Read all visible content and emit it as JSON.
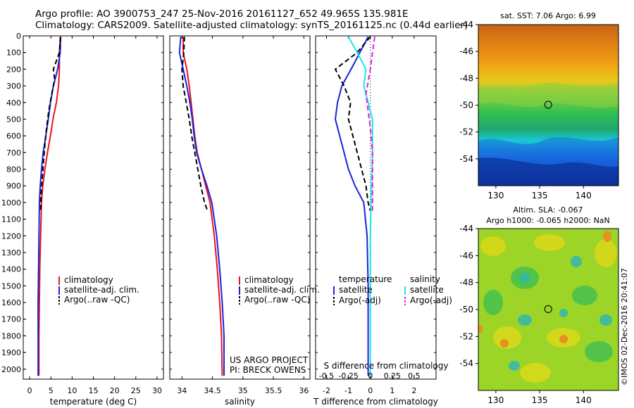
{
  "header": {
    "line1": "Argo profile: AO 3900753_247 25-Nov-2016 20161127_652 49.965S 135.981E",
    "line2": "Climatology: CARS2009. Satellite-adjusted climatology: synTS_20161125.nc (0.44d earlier)"
  },
  "credit": {
    "project": "US ARGO PROJECT",
    "pi": "PI: BRECK OWENS"
  },
  "timestamp": "©IMOS 02-Dec-2016 20:41:07",
  "colors": {
    "climatology": "#e8141e",
    "satellite": "#1a23d9",
    "argo": "#000000",
    "salinity_sat": "#18e8e8",
    "salinity_argo": "#e020e0"
  },
  "chart_data": [
    {
      "type": "line",
      "id": "temperature",
      "xlabel": "temperature (deg C)",
      "xlim": [
        -1.5,
        31.5
      ],
      "ylim": [
        2060,
        0
      ],
      "xticks": [
        0,
        5,
        10,
        15,
        20,
        25,
        30
      ],
      "yticks": [
        0,
        100,
        200,
        300,
        400,
        500,
        600,
        700,
        800,
        900,
        1000,
        1100,
        1200,
        1300,
        1400,
        1500,
        1600,
        1700,
        1800,
        1900,
        2000
      ],
      "legend": [
        "climatology",
        "satellite-adj. clim.",
        "Argo(..raw -QC)"
      ],
      "series": [
        {
          "name": "climatology",
          "x": [
            7.2,
            7.0,
            7.0,
            6.8,
            6.3,
            5.5,
            4.9,
            4.2,
            3.6,
            3.1,
            2.8,
            2.6,
            2.4,
            2.3,
            2.2,
            2.2,
            2.2
          ],
          "y": [
            5,
            100,
            200,
            300,
            400,
            500,
            600,
            700,
            800,
            900,
            1000,
            1200,
            1400,
            1600,
            1800,
            2000,
            2040
          ]
        },
        {
          "name": "satellite-adj. clim.",
          "x": [
            7.3,
            7.2,
            6.6,
            5.6,
            4.9,
            4.4,
            3.8,
            3.2,
            2.8,
            2.5,
            2.3,
            2.2,
            2.1,
            2.0,
            2.0,
            2.0
          ],
          "y": [
            5,
            100,
            200,
            300,
            400,
            500,
            600,
            700,
            800,
            900,
            1000,
            1200,
            1400,
            1600,
            1800,
            2040
          ]
        },
        {
          "name": "Argo(..raw -QC)",
          "x": [
            7.3,
            7.0,
            5.6,
            5.9,
            5.2,
            4.5,
            4.0,
            3.6,
            3.3,
            3.0,
            2.7,
            2.6
          ],
          "y": [
            5,
            100,
            200,
            260,
            350,
            450,
            550,
            650,
            750,
            850,
            950,
            1050
          ]
        }
      ]
    },
    {
      "type": "line",
      "id": "salinity",
      "xlabel": "salinity",
      "xlim": [
        33.8,
        36.1
      ],
      "ylim": [
        2060,
        0
      ],
      "xticks": [
        "34",
        "34.5",
        "35",
        "35.5",
        "36"
      ],
      "legend": [
        "climatology",
        "satellite-adj. clim.",
        "Argo(..raw -QC)"
      ],
      "series": [
        {
          "name": "climatology",
          "x": [
            34.02,
            34.02,
            34.08,
            34.12,
            34.15,
            34.18,
            34.21,
            34.25,
            34.32,
            34.39,
            34.46,
            34.53,
            34.58,
            34.62,
            34.65,
            34.66
          ],
          "y": [
            5,
            100,
            200,
            300,
            400,
            500,
            600,
            700,
            800,
            900,
            1000,
            1200,
            1400,
            1600,
            1800,
            2040
          ]
        },
        {
          "name": "satellite-adj. clim.",
          "x": [
            33.98,
            33.96,
            34.02,
            34.08,
            34.13,
            34.17,
            34.2,
            34.24,
            34.32,
            34.41,
            34.49,
            34.57,
            34.62,
            34.66,
            34.69,
            34.69
          ],
          "y": [
            5,
            100,
            200,
            300,
            400,
            500,
            600,
            700,
            800,
            900,
            1000,
            1200,
            1400,
            1600,
            1800,
            2040
          ]
        },
        {
          "name": "Argo(..raw -QC)",
          "x": [
            34.04,
            34.03,
            34.0,
            34.02,
            34.07,
            34.12,
            34.16,
            34.21,
            34.26,
            34.31,
            34.37,
            34.42
          ],
          "y": [
            5,
            100,
            200,
            300,
            400,
            500,
            600,
            700,
            800,
            900,
            1000,
            1050
          ]
        }
      ]
    },
    {
      "type": "line",
      "id": "difference",
      "xlabel": "T difference from climatology",
      "xlabel2": "S difference from climatology",
      "xlim": [
        -2.5,
        3.0
      ],
      "ylim": [
        2060,
        0
      ],
      "xticks": [
        "-2",
        "-1",
        "0",
        "1",
        "2"
      ],
      "xticks_s": [
        "-0.5",
        "-0.25",
        "0",
        "0.25",
        "0.5"
      ],
      "legend_temperature": [
        "temperature",
        "satellite",
        "Argo(-adj)"
      ],
      "legend_salinity": [
        "salinity",
        "satellite",
        "Argo(-adj)"
      ],
      "series": [
        {
          "name": "satellite",
          "x": [
            -0.1,
            -0.4,
            -0.8,
            -1.3,
            -1.5,
            -1.6,
            -1.4,
            -1.2,
            -1.0,
            -0.7,
            -0.3,
            -0.15,
            -0.1,
            -0.1,
            -0.1
          ],
          "y": [
            5,
            80,
            180,
            300,
            400,
            500,
            600,
            700,
            800,
            900,
            1000,
            1200,
            1500,
            1800,
            2040
          ]
        },
        {
          "name": "Argo(-adj)",
          "x": [
            0,
            -0.6,
            -1.6,
            -1.2,
            -0.9,
            -1.0,
            -0.8,
            -0.6,
            -0.4,
            -0.2,
            -0.1,
            0
          ],
          "y": [
            5,
            100,
            200,
            300,
            400,
            500,
            600,
            700,
            800,
            900,
            1000,
            1050
          ]
        },
        {
          "name": "salinity satellite",
          "x": [
            -1.0,
            -0.6,
            -0.2,
            -0.3,
            -0.1,
            0.1,
            0.1,
            0.05,
            0.0,
            0.0,
            0.0
          ],
          "y": [
            5,
            100,
            200,
            300,
            400,
            500,
            700,
            900,
            1200,
            1600,
            2040
          ]
        },
        {
          "name": "salinity Argo(-adj)",
          "x": [
            0.2,
            0.1,
            0.0,
            -0.2,
            -0.1,
            0.0,
            0.1,
            0.1,
            0.1
          ],
          "y": [
            5,
            100,
            200,
            350,
            450,
            550,
            700,
            900,
            1050
          ]
        }
      ]
    },
    {
      "type": "heatmap",
      "id": "sst_map",
      "title": "sat. SST: 7.06 Argo: 6.99",
      "xlim": [
        128,
        144
      ],
      "ylim": [
        -56,
        -44
      ],
      "xticks": [
        130,
        135,
        140
      ],
      "yticks": [
        -54,
        -52,
        -50,
        -48,
        -46,
        -44
      ],
      "marker": {
        "lon": 135.98,
        "lat": -49.97
      }
    },
    {
      "type": "heatmap",
      "id": "sla_map",
      "title": "Altim. SLA: -0.067",
      "subtitle": "Argo h1000: -0.065 h2000: NaN",
      "xlim": [
        128,
        144
      ],
      "ylim": [
        -56,
        -44
      ],
      "xticks": [
        130,
        135,
        140
      ],
      "yticks": [
        -54,
        -52,
        -50,
        -48,
        -46,
        -44
      ],
      "marker": {
        "lon": 135.98,
        "lat": -49.97
      }
    }
  ]
}
